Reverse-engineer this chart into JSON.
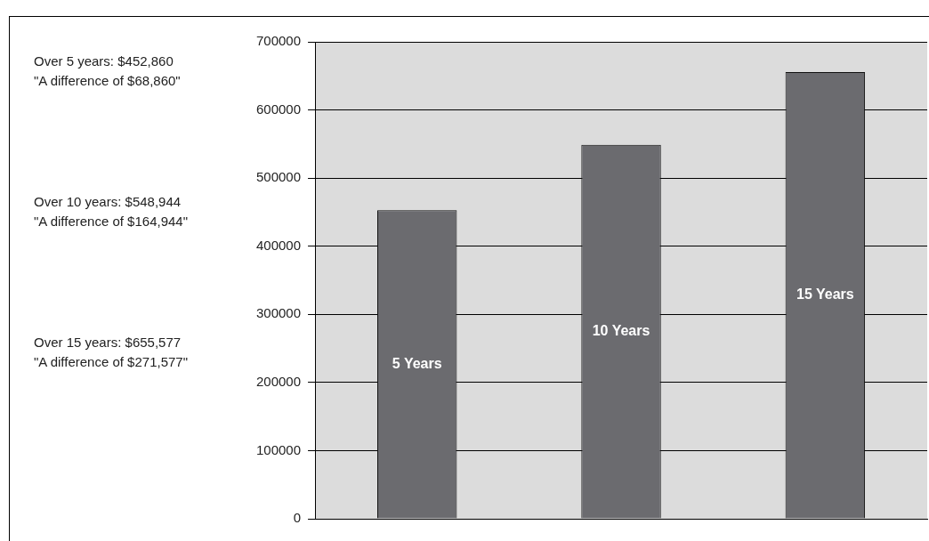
{
  "chart_data": {
    "type": "bar",
    "categories": [
      "5 Years",
      "10 Years",
      "15 Years"
    ],
    "values": [
      452860,
      548944,
      655577
    ],
    "color": "#6b6b6f",
    "ylim": [
      0,
      700000
    ],
    "yticks": [
      0,
      100000,
      200000,
      300000,
      400000,
      500000,
      600000,
      700000
    ],
    "grid": "y",
    "legend": false,
    "tick_labels": "y",
    "annotations": [
      "Over 5 years: $452,860",
      "\"A difference of $68,860\"",
      "Over 10 years: $548,944",
      "\"A difference of $164,944\"",
      "Over 15 years: $655,577",
      "\"A difference of $271,577\""
    ]
  }
}
